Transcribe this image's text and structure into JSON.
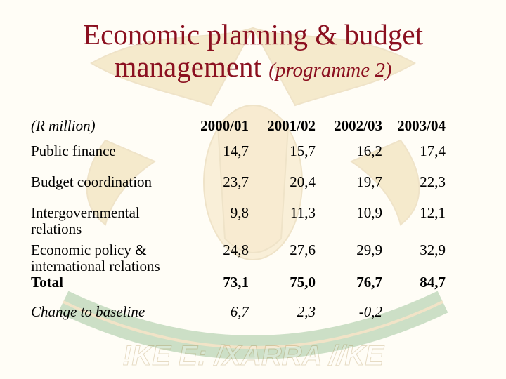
{
  "title": {
    "line1": "Economic planning & budget",
    "line2_main": "management",
    "line2_sub": "(programme 2)"
  },
  "table": {
    "unit_label": "(R million)",
    "columns": [
      "2000/01",
      "2001/02",
      "2002/03",
      "2003/04"
    ],
    "rows": [
      {
        "label": "Public finance",
        "values": [
          "14,7",
          "15,7",
          "16,2",
          "17,4"
        ]
      },
      {
        "label": "Budget coordination",
        "values": [
          "23,7",
          "20,4",
          "19,7",
          "22,3"
        ]
      },
      {
        "label_line1": "Intergovernmental",
        "label_line2": "relations",
        "values": [
          "9,8",
          "11,3",
          "10,9",
          "12,1"
        ]
      },
      {
        "label_line1": "Economic policy &",
        "label_line2": "international relations",
        "values": [
          "24,8",
          "27,6",
          "29,9",
          "32,9"
        ]
      }
    ],
    "total": {
      "label": "Total",
      "values": [
        "73,1",
        "75,0",
        "76,7",
        "84,7"
      ]
    },
    "change": {
      "label": "Change to baseline",
      "values": [
        "6,7",
        "2,3",
        "-0,2"
      ]
    }
  },
  "background": {
    "emblem_motto": "!KE E: /XARRA //KE",
    "emblem_color": "#c8a040"
  }
}
